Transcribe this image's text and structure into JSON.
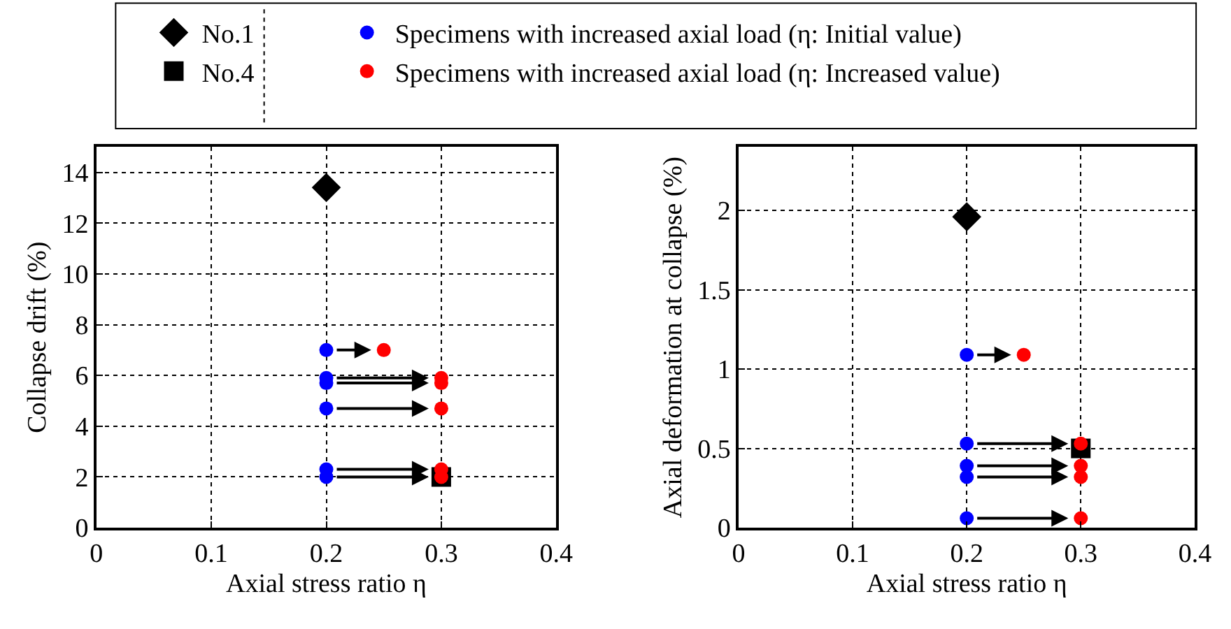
{
  "chart_data": [
    {
      "type": "scatter",
      "xlabel": "Axial stress ratio η",
      "ylabel": "Collapse drift (%)",
      "xlim": [
        0,
        0.4
      ],
      "xticks": [
        0,
        0.1,
        0.2,
        0.3,
        0.4
      ],
      "ylim": [
        0,
        15
      ],
      "yticks": [
        0,
        2,
        4,
        6,
        8,
        10,
        12,
        14
      ],
      "grid": true,
      "legend": "top",
      "series": [
        {
          "name": "No.1",
          "color": "#000000",
          "marker": "diamond",
          "x": [
            0.2
          ],
          "values": [
            13.4
          ]
        },
        {
          "name": "No.4",
          "color": "#000000",
          "marker": "square",
          "x": [
            0.3
          ],
          "values": [
            2.0
          ]
        },
        {
          "name": "Specimens with increased axial load (η: Initial value)",
          "color": "#0000ff",
          "marker": "circle",
          "x": [
            0.2,
            0.2,
            0.2,
            0.2,
            0.2,
            0.2
          ],
          "values": [
            7.0,
            5.9,
            5.7,
            4.7,
            2.3,
            2.0
          ]
        },
        {
          "name": "Specimens with increased axial load (η: Increased value)",
          "color": "#ff0000",
          "marker": "circle",
          "x": [
            0.25,
            0.3,
            0.3,
            0.3,
            0.3,
            0.3
          ],
          "values": [
            7.0,
            5.9,
            5.7,
            4.7,
            2.3,
            2.0
          ]
        }
      ]
    },
    {
      "type": "scatter",
      "xlabel": "Axial stress ratio η",
      "ylabel": "Axial deformation at collapse (%)",
      "xlim": [
        0,
        0.4
      ],
      "xticks": [
        0,
        0.1,
        0.2,
        0.3,
        0.4
      ],
      "ylim": [
        0,
        2.4
      ],
      "yticks": [
        0,
        0.5,
        1,
        1.5,
        2
      ],
      "grid": true,
      "series": [
        {
          "color": "#000000",
          "marker": "diamond",
          "x": [
            0.2
          ],
          "values": [
            1.96
          ]
        },
        {
          "color": "#000000",
          "marker": "square",
          "x": [
            0.3
          ],
          "values": [
            0.5
          ]
        },
        {
          "color": "#0000ff",
          "marker": "circle",
          "x": [
            0.2,
            0.2,
            0.2,
            0.2,
            0.2
          ],
          "values": [
            1.09,
            0.53,
            0.39,
            0.32,
            0.06
          ]
        },
        {
          "color": "#ff0000",
          "marker": "circle",
          "x": [
            0.25,
            0.3,
            0.3,
            0.3,
            0.3
          ],
          "values": [
            1.09,
            0.53,
            0.39,
            0.32,
            0.06
          ]
        }
      ]
    }
  ]
}
